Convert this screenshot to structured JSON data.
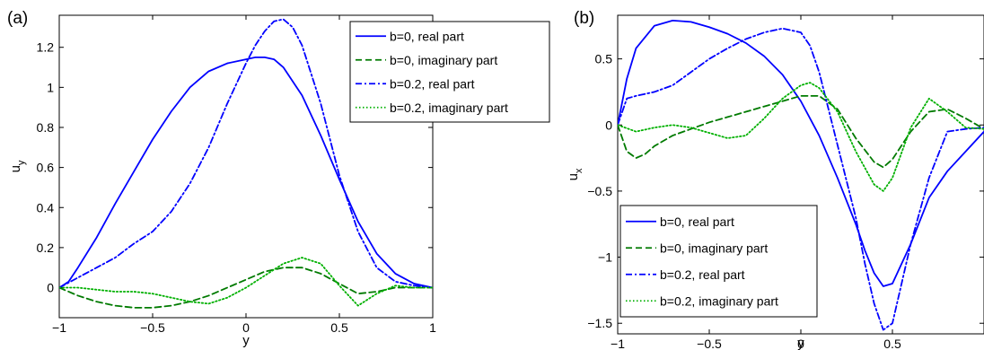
{
  "chart_data": [
    {
      "type": "line",
      "panel_label": "(a)",
      "xlabel": "y",
      "ylabel": "u",
      "ylabel_sub": "y",
      "xlim": [
        -1,
        1
      ],
      "ylim": [
        -0.15,
        1.36
      ],
      "xticks": [
        -1,
        -0.5,
        0,
        0.5,
        1
      ],
      "xtick_labels": [
        "−1",
        "−0.5",
        "0",
        "0.5",
        "1"
      ],
      "yticks": [
        0,
        0.2,
        0.4,
        0.6,
        0.8,
        1,
        1.2
      ],
      "ytick_labels": [
        "0",
        "0.2",
        "0.4",
        "0.6",
        "0.8",
        "1",
        "1.2"
      ],
      "legend_position": "top-right",
      "series": [
        {
          "name": "b=0, real part",
          "color": "#0000ff",
          "dash": "solid",
          "x": [
            -1,
            -0.95,
            -0.9,
            -0.8,
            -0.7,
            -0.6,
            -0.5,
            -0.4,
            -0.3,
            -0.2,
            -0.1,
            0,
            0.05,
            0.1,
            0.15,
            0.2,
            0.3,
            0.4,
            0.5,
            0.6,
            0.7,
            0.8,
            0.9,
            1
          ],
          "y": [
            0,
            0.03,
            0.1,
            0.25,
            0.42,
            0.58,
            0.74,
            0.88,
            1.0,
            1.08,
            1.12,
            1.14,
            1.15,
            1.15,
            1.14,
            1.1,
            0.96,
            0.76,
            0.54,
            0.33,
            0.17,
            0.07,
            0.02,
            0
          ]
        },
        {
          "name": "b=0, imaginary part",
          "color": "#007a00",
          "dash": "dashed",
          "x": [
            -1,
            -0.9,
            -0.8,
            -0.7,
            -0.6,
            -0.5,
            -0.4,
            -0.3,
            -0.2,
            -0.1,
            0,
            0.1,
            0.2,
            0.3,
            0.4,
            0.5,
            0.6,
            0.7,
            0.8,
            0.9,
            1
          ],
          "y": [
            0,
            -0.04,
            -0.07,
            -0.09,
            -0.1,
            -0.1,
            -0.09,
            -0.07,
            -0.04,
            0,
            0.04,
            0.08,
            0.1,
            0.1,
            0.07,
            0.02,
            -0.03,
            -0.02,
            0,
            0,
            0
          ]
        },
        {
          "name": "b=0.2, real part",
          "color": "#0000ff",
          "dash": "dashdot",
          "x": [
            -1,
            -0.9,
            -0.8,
            -0.7,
            -0.6,
            -0.5,
            -0.4,
            -0.3,
            -0.2,
            -0.1,
            0,
            0.05,
            0.1,
            0.15,
            0.2,
            0.25,
            0.3,
            0.4,
            0.5,
            0.6,
            0.7,
            0.8,
            0.9,
            1
          ],
          "y": [
            0,
            0.05,
            0.1,
            0.15,
            0.22,
            0.28,
            0.38,
            0.52,
            0.7,
            0.92,
            1.12,
            1.21,
            1.28,
            1.33,
            1.34,
            1.3,
            1.21,
            0.92,
            0.56,
            0.28,
            0.1,
            0.03,
            0.01,
            0
          ]
        },
        {
          "name": "b=0.2, imaginary part",
          "color": "#00b000",
          "dash": "dotted",
          "x": [
            -1,
            -0.9,
            -0.8,
            -0.7,
            -0.6,
            -0.5,
            -0.4,
            -0.3,
            -0.2,
            -0.1,
            0,
            0.1,
            0.2,
            0.3,
            0.4,
            0.5,
            0.6,
            0.7,
            0.8,
            0.9,
            1
          ],
          "y": [
            0,
            0,
            -0.01,
            -0.02,
            -0.02,
            -0.03,
            -0.05,
            -0.07,
            -0.08,
            -0.05,
            0,
            0.06,
            0.12,
            0.15,
            0.12,
            0.01,
            -0.09,
            -0.03,
            0.01,
            0,
            0
          ]
        }
      ]
    },
    {
      "type": "line",
      "panel_label": "(b)",
      "xlabel": "y",
      "ylabel": "u",
      "ylabel_sub": "x",
      "xlim": [
        -1,
        1
      ],
      "ylim": [
        -1.58,
        0.83
      ],
      "xticks": [
        -1,
        -0.5,
        0,
        0.5
      ],
      "xtick_labels": [
        "−1",
        "−0.5",
        "0",
        "0.5"
      ],
      "yticks": [
        -1.5,
        -1,
        -0.5,
        0,
        0.5
      ],
      "ytick_labels": [
        "−1.5",
        "−1",
        "−0.5",
        "0",
        "0.5"
      ],
      "legend_position": "bottom-left",
      "series": [
        {
          "name": "b=0, real part",
          "color": "#0000ff",
          "dash": "solid",
          "x": [
            -1,
            -0.95,
            -0.9,
            -0.8,
            -0.7,
            -0.6,
            -0.5,
            -0.4,
            -0.3,
            -0.2,
            -0.1,
            0,
            0.1,
            0.2,
            0.3,
            0.35,
            0.4,
            0.45,
            0.5,
            0.6,
            0.7,
            0.8,
            0.9,
            1
          ],
          "y": [
            0,
            0.35,
            0.58,
            0.75,
            0.79,
            0.78,
            0.74,
            0.69,
            0.62,
            0.52,
            0.38,
            0.18,
            -0.08,
            -0.4,
            -0.75,
            -0.95,
            -1.12,
            -1.22,
            -1.2,
            -0.9,
            -0.55,
            -0.35,
            -0.2,
            -0.05
          ]
        },
        {
          "name": "b=0, imaginary part",
          "color": "#007a00",
          "dash": "dashed",
          "x": [
            -1,
            -0.95,
            -0.9,
            -0.85,
            -0.8,
            -0.7,
            -0.6,
            -0.5,
            -0.4,
            -0.3,
            -0.2,
            -0.1,
            0,
            0.1,
            0.2,
            0.3,
            0.4,
            0.45,
            0.5,
            0.6,
            0.7,
            0.8,
            0.9,
            1
          ],
          "y": [
            0,
            -0.2,
            -0.25,
            -0.22,
            -0.16,
            -0.08,
            -0.03,
            0.02,
            0.06,
            0.1,
            0.14,
            0.18,
            0.22,
            0.22,
            0.12,
            -0.1,
            -0.28,
            -0.32,
            -0.26,
            -0.05,
            0.1,
            0.12,
            0.05,
            -0.03
          ]
        },
        {
          "name": "b=0.2, real part",
          "color": "#0000ff",
          "dash": "dashdot",
          "x": [
            -1,
            -0.95,
            -0.9,
            -0.8,
            -0.7,
            -0.6,
            -0.5,
            -0.4,
            -0.3,
            -0.2,
            -0.1,
            0,
            0.05,
            0.1,
            0.2,
            0.3,
            0.35,
            0.4,
            0.45,
            0.5,
            0.6,
            0.7,
            0.8,
            0.9,
            1
          ],
          "y": [
            0,
            0.2,
            0.22,
            0.25,
            0.3,
            0.4,
            0.5,
            0.58,
            0.65,
            0.7,
            0.73,
            0.7,
            0.6,
            0.4,
            -0.15,
            -0.7,
            -1.05,
            -1.35,
            -1.55,
            -1.5,
            -0.9,
            -0.4,
            -0.05,
            -0.03,
            -0.02
          ]
        },
        {
          "name": "b=0.2, imaginary part",
          "color": "#00b000",
          "dash": "dotted",
          "x": [
            -1,
            -0.9,
            -0.8,
            -0.7,
            -0.6,
            -0.5,
            -0.4,
            -0.3,
            -0.2,
            -0.1,
            0,
            0.05,
            0.1,
            0.2,
            0.3,
            0.4,
            0.45,
            0.5,
            0.6,
            0.7,
            0.8,
            0.9,
            1
          ],
          "y": [
            0,
            -0.05,
            -0.02,
            0,
            -0.02,
            -0.06,
            -0.1,
            -0.08,
            0.05,
            0.2,
            0.3,
            0.32,
            0.28,
            0.1,
            -0.2,
            -0.45,
            -0.5,
            -0.4,
            -0.02,
            0.2,
            0.1,
            -0.02,
            -0.03
          ]
        }
      ]
    }
  ]
}
